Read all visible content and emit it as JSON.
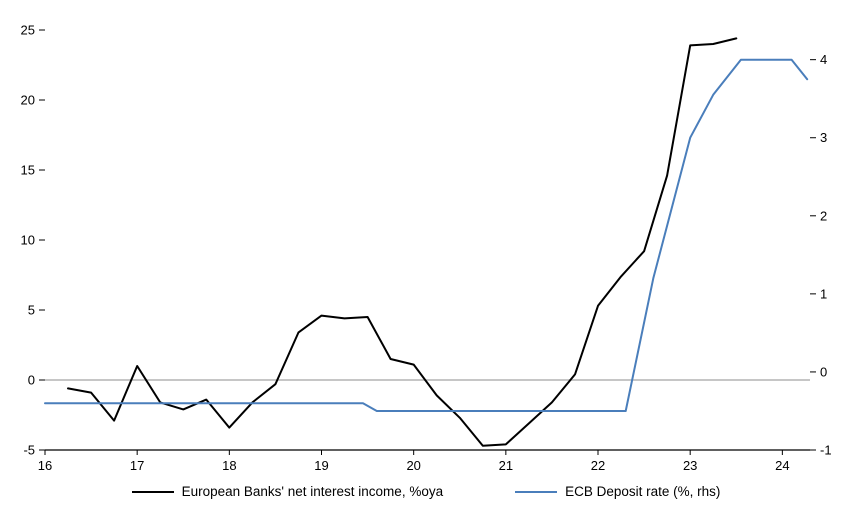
{
  "chart_data": {
    "type": "line",
    "title": "",
    "xlabel": "",
    "ylabel_left": "",
    "ylabel_right": "",
    "grid": false,
    "zero_line": true,
    "legend_position": "bottom",
    "x_axis": {
      "min": 16,
      "max": 24.3,
      "ticks": [
        16,
        17,
        18,
        19,
        20,
        21,
        22,
        23,
        24
      ]
    },
    "left_axis": {
      "min": -5,
      "max": 25,
      "ticks": [
        -5,
        0,
        5,
        10,
        15,
        20,
        25
      ]
    },
    "right_axis": {
      "min": -1,
      "max": 4.38,
      "ticks": [
        -1,
        0,
        1,
        2,
        3,
        4
      ]
    },
    "series": [
      {
        "name": "European Banks' net interest income, %oya",
        "axis": "left",
        "color": "#000000",
        "width": 2,
        "x": [
          16.25,
          16.5,
          16.75,
          17.0,
          17.25,
          17.5,
          17.75,
          18.0,
          18.25,
          18.5,
          18.75,
          19.0,
          19.25,
          19.5,
          19.75,
          20.0,
          20.25,
          20.5,
          20.75,
          21.0,
          21.25,
          21.5,
          21.75,
          22.0,
          22.25,
          22.5,
          22.75,
          23.0,
          23.25,
          23.5
        ],
        "values": [
          -0.6,
          -0.9,
          -2.9,
          1.0,
          -1.6,
          -2.1,
          -1.4,
          -3.4,
          -1.6,
          -0.3,
          3.4,
          4.6,
          4.4,
          4.5,
          1.5,
          1.1,
          -1.1,
          -2.7,
          -4.7,
          -4.6,
          -3.1,
          -1.6,
          0.4,
          5.3,
          7.4,
          9.2,
          14.6,
          23.9,
          24.0,
          24.4
        ]
      },
      {
        "name": "ECB Deposit rate (%, rhs)",
        "axis": "right",
        "color": "#4a7ebb",
        "width": 2,
        "x": [
          16.0,
          19.45,
          19.6,
          22.3,
          22.6,
          23.0,
          23.25,
          23.55,
          24.1,
          24.27
        ],
        "values": [
          -0.4,
          -0.4,
          -0.5,
          -0.5,
          1.2,
          3.0,
          3.55,
          4.0,
          4.0,
          3.75
        ]
      }
    ]
  }
}
